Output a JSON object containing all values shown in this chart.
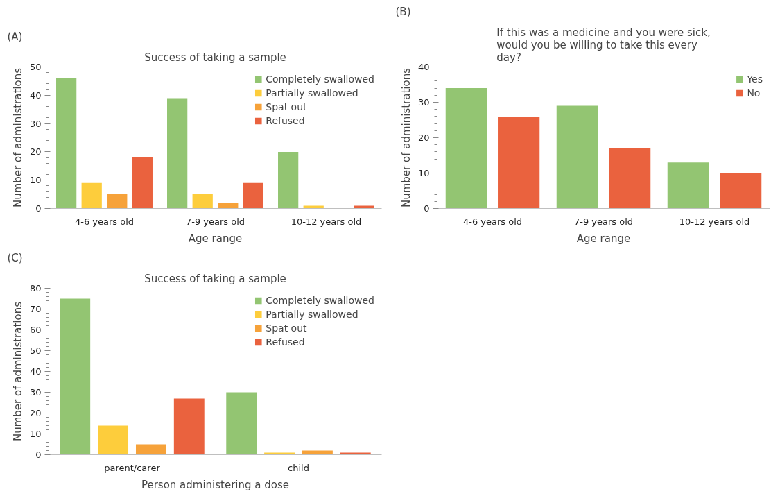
{
  "chart_data": [
    {
      "type": "bar",
      "annotations": [
        "(A)"
      ],
      "title": "Success of taking a sample",
      "xlabel": "Age range",
      "ylabel": "Number of administrations",
      "categories": [
        "4-6 years old",
        "7-9 years old",
        "10-12 years old"
      ],
      "ylim": [
        0,
        50
      ],
      "yticks": [
        0,
        10,
        20,
        30,
        40,
        50
      ],
      "legend": "top right",
      "series": [
        {
          "name": "Completely swallowed",
          "color": "#93c572",
          "values": [
            46,
            39,
            20
          ]
        },
        {
          "name": "Partially swallowed",
          "color": "#fdcd3c",
          "values": [
            9,
            5,
            1
          ]
        },
        {
          "name": "Spat out",
          "color": "#f6a23a",
          "values": [
            5,
            2,
            0
          ]
        },
        {
          "name": "Refused",
          "color": "#ea623e",
          "values": [
            18,
            9,
            1
          ]
        }
      ]
    },
    {
      "type": "bar",
      "annotations": [
        "(B)"
      ],
      "title": "If this was a medicine and you were sick, would you be willing to take this every day?",
      "xlabel": "Age range",
      "ylabel": "Number of administrations",
      "categories": [
        "4-6 years old",
        "7-9 years old",
        "10-12 years old"
      ],
      "ylim": [
        0,
        40
      ],
      "yticks": [
        0,
        10,
        20,
        30,
        40
      ],
      "legend": "top right",
      "series": [
        {
          "name": "Yes",
          "color": "#93c572",
          "values": [
            34,
            29,
            13
          ]
        },
        {
          "name": "No",
          "color": "#ea623e",
          "values": [
            26,
            17,
            10
          ]
        }
      ]
    },
    {
      "type": "bar",
      "annotations": [
        "(C)"
      ],
      "title": "Success of taking a sample",
      "xlabel": "Person administering a dose",
      "ylabel": "Number of administrations",
      "categories": [
        "parent/carer",
        "child"
      ],
      "ylim": [
        0,
        80
      ],
      "yticks": [
        0,
        10,
        20,
        30,
        40,
        50,
        60,
        70,
        80
      ],
      "legend": "top right",
      "series": [
        {
          "name": "Completely swallowed",
          "color": "#93c572",
          "values": [
            75,
            30
          ]
        },
        {
          "name": "Partially swallowed",
          "color": "#fdcd3c",
          "values": [
            14,
            1
          ]
        },
        {
          "name": "Spat out",
          "color": "#f6a23a",
          "values": [
            5,
            2
          ]
        },
        {
          "name": "Refused",
          "color": "#ea623e",
          "values": [
            27,
            1
          ]
        }
      ]
    }
  ]
}
